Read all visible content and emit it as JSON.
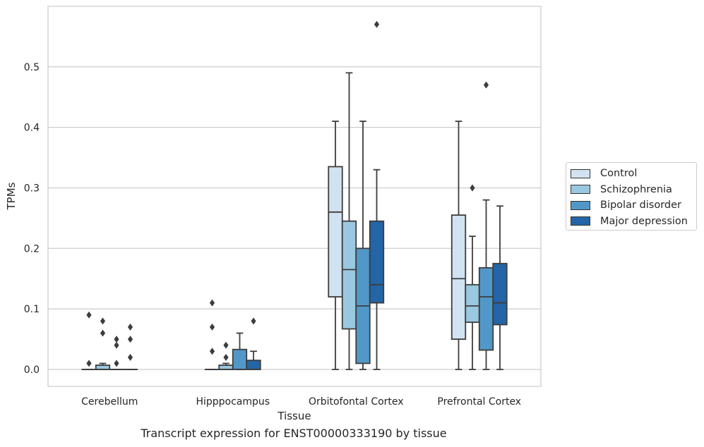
{
  "caption": "Transcript expression for ENST00000333190 by tissue",
  "chart_data": {
    "type": "box",
    "xlabel": "Tissue",
    "ylabel": "TPMs",
    "ylim": [
      -0.028,
      0.6
    ],
    "yticks": [
      0.0,
      0.1,
      0.2,
      0.3,
      0.4,
      0.5
    ],
    "ytick_labels": [
      "0.0",
      "0.1",
      "0.2",
      "0.3",
      "0.4",
      "0.5"
    ],
    "grid": "horizontal",
    "legend_position": "right",
    "categories": [
      "Cerebellum",
      "Hipppocampus",
      "Orbitofontal Cortex",
      "Prefrontal Cortex"
    ],
    "series": [
      {
        "name": "Control",
        "color": "#d1e2f2",
        "boxes": [
          {
            "whislo": 0,
            "q1": 0,
            "med": 0,
            "q3": 0,
            "whishi": 0,
            "fliers": [
              0.01,
              0.09
            ]
          },
          {
            "whislo": 0,
            "q1": 0,
            "med": 0,
            "q3": 0,
            "whishi": 0,
            "fliers": [
              0.03,
              0.07,
              0.11
            ]
          },
          {
            "whislo": 0,
            "q1": 0.12,
            "med": 0.26,
            "q3": 0.335,
            "whishi": 0.41,
            "fliers": []
          },
          {
            "whislo": 0,
            "q1": 0.05,
            "med": 0.15,
            "q3": 0.255,
            "whishi": 0.41,
            "fliers": []
          }
        ]
      },
      {
        "name": "Schizophrenia",
        "color": "#9ac8e0",
        "boxes": [
          {
            "whislo": 0,
            "q1": 0,
            "med": 0,
            "q3": 0.007,
            "whishi": 0.01,
            "fliers": [
              0.06,
              0.08
            ]
          },
          {
            "whislo": 0,
            "q1": 0,
            "med": 0,
            "q3": 0.007,
            "whishi": 0.01,
            "fliers": [
              0.02,
              0.04
            ]
          },
          {
            "whislo": 0,
            "q1": 0.067,
            "med": 0.165,
            "q3": 0.245,
            "whishi": 0.49,
            "fliers": []
          },
          {
            "whislo": 0,
            "q1": 0.078,
            "med": 0.105,
            "q3": 0.14,
            "whishi": 0.22,
            "fliers": [
              0.3
            ]
          }
        ]
      },
      {
        "name": "Bipolar disorder",
        "color": "#5198c8",
        "boxes": [
          {
            "whislo": 0,
            "q1": 0,
            "med": 0,
            "q3": 0,
            "whishi": 0,
            "fliers": [
              0.01,
              0.04,
              0.05
            ]
          },
          {
            "whislo": 0,
            "q1": 0,
            "med": 0,
            "q3": 0.033,
            "whishi": 0.06,
            "fliers": []
          },
          {
            "whislo": 0,
            "q1": 0.01,
            "med": 0.105,
            "q3": 0.2,
            "whishi": 0.41,
            "fliers": []
          },
          {
            "whislo": 0,
            "q1": 0.032,
            "med": 0.12,
            "q3": 0.168,
            "whishi": 0.28,
            "fliers": [
              0.47
            ]
          }
        ]
      },
      {
        "name": "Major depression",
        "color": "#2365a6",
        "boxes": [
          {
            "whislo": 0,
            "q1": 0,
            "med": 0,
            "q3": 0,
            "whishi": 0,
            "fliers": [
              0.02,
              0.05,
              0.07
            ]
          },
          {
            "whislo": 0,
            "q1": 0,
            "med": 0,
            "q3": 0.015,
            "whishi": 0.03,
            "fliers": [
              0.08
            ]
          },
          {
            "whislo": 0,
            "q1": 0.11,
            "med": 0.14,
            "q3": 0.245,
            "whishi": 0.33,
            "fliers": [
              0.57
            ]
          },
          {
            "whislo": 0,
            "q1": 0.074,
            "med": 0.11,
            "q3": 0.175,
            "whishi": 0.27,
            "fliers": []
          }
        ]
      }
    ]
  }
}
